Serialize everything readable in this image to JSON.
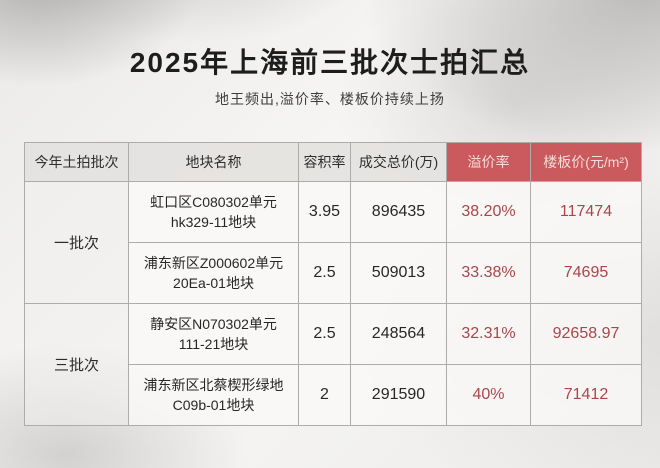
{
  "header": {
    "title": "2025年上海前三批次士拍汇总",
    "subtitle": "地王频出,溢价率、楼板价持续上扬"
  },
  "table": {
    "columns": [
      "今年土拍批次",
      "地块名称",
      "容积率",
      "成交总价(万)",
      "溢价率",
      "楼板价(元/m²)"
    ],
    "rows": [
      {
        "batch": "一批次",
        "name_line1": "虹口区C080302单元",
        "name_line2": "hk329-11地块",
        "plot_ratio": "3.95",
        "total_price": "896435",
        "premium_rate": "38.20%",
        "floor_price": "117474"
      },
      {
        "batch": "一批次",
        "name_line1": "浦东新区Z000602单元",
        "name_line2": "20Ea-01地块",
        "plot_ratio": "2.5",
        "total_price": "509013",
        "premium_rate": "33.38%",
        "floor_price": "74695"
      },
      {
        "batch": "三批次",
        "name_line1": "静安区N070302单元",
        "name_line2": "111-21地块",
        "plot_ratio": "2.5",
        "total_price": "248564",
        "premium_rate": "32.31%",
        "floor_price": "92658.97"
      },
      {
        "batch": "三批次",
        "name_line1": "浦东新区北蔡楔形绿地",
        "name_line2": "C09b-01地块",
        "plot_ratio": "2",
        "total_price": "291590",
        "premium_rate": "40%",
        "floor_price": "71412"
      }
    ]
  },
  "colors": {
    "accent_red_bg": "#cb5a5e",
    "accent_red_text": "#a9464b",
    "header_gray_bg": "#e4e2df",
    "cell_bg": "#faf9f7",
    "border": "#aeaca9",
    "title_text": "#1d1d1d"
  },
  "chart_data": {
    "type": "table",
    "title": "2025年上海前三批次士拍汇总",
    "subtitle": "地王频出,溢价率、楼板价持续上扬",
    "columns": [
      "今年土拍批次",
      "地块名称",
      "容积率",
      "成交总价(万)",
      "溢价率",
      "楼板价(元/m²)"
    ],
    "rows": [
      [
        "一批次",
        "虹口区C080302单元 hk329-11地块",
        3.95,
        896435,
        "38.20%",
        117474
      ],
      [
        "一批次",
        "浦东新区Z000602单元 20Ea-01地块",
        2.5,
        509013,
        "33.38%",
        74695
      ],
      [
        "三批次",
        "静安区N070302单元 111-21地块",
        2.5,
        248564,
        "32.31%",
        92658.97
      ],
      [
        "三批次",
        "浦东新区北蔡楔形绿地 C09b-01地块",
        2,
        291590,
        "40%",
        71412
      ]
    ],
    "notes": "溢价率 and 楼板价 columns highlighted in red; batch column cells merged across two rows each"
  }
}
